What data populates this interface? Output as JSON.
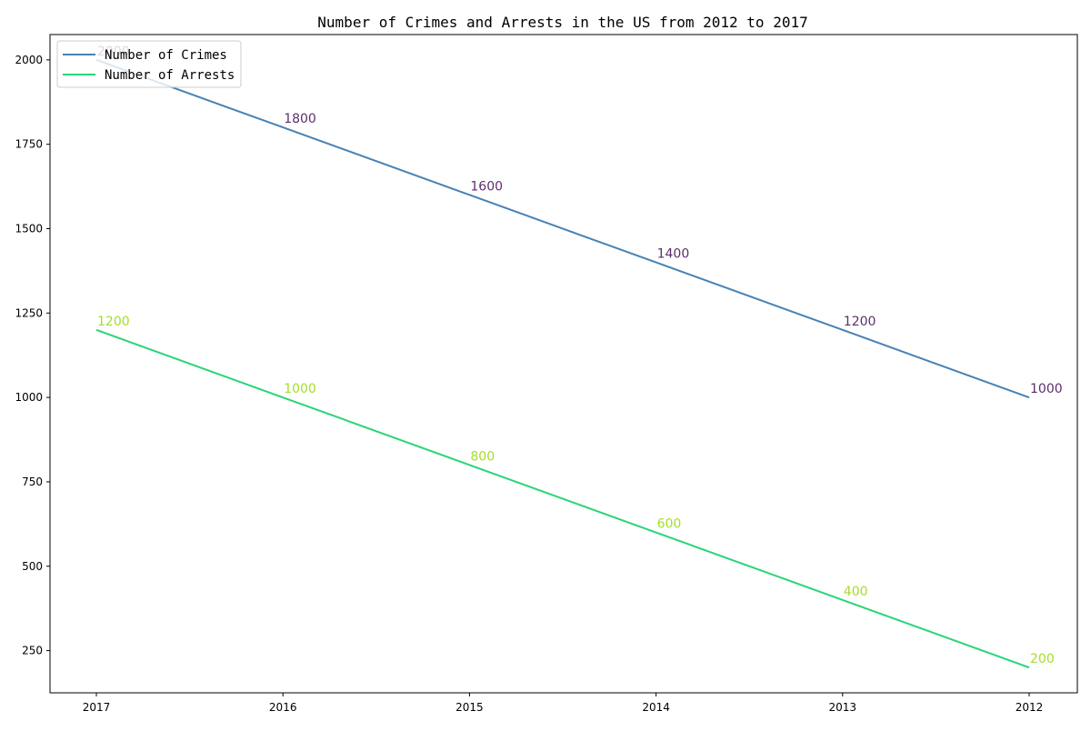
{
  "chart_data": {
    "type": "line",
    "title": "Number of Crimes and Arrests in the US from 2012 to 2017",
    "xlabel": "",
    "ylabel": "",
    "categories": [
      "2017",
      "2016",
      "2015",
      "2014",
      "2013",
      "2012"
    ],
    "x_reversed_order_displayed": true,
    "ylim": [
      125,
      2075
    ],
    "yticks": [
      250,
      500,
      750,
      1000,
      1250,
      1500,
      1750,
      2000
    ],
    "grid": false,
    "legend_placement": "top-left",
    "series": [
      {
        "name": "Number of Crimes",
        "values": [
          2000,
          1800,
          1600,
          1400,
          1200,
          1000
        ],
        "line_color": "#4682b4",
        "label_color": "#5c2f6b"
      },
      {
        "name": "Number of Arrests",
        "values": [
          1200,
          1000,
          800,
          600,
          400,
          200
        ],
        "line_color": "#2ad47a",
        "label_color": "#a5dd2a"
      }
    ]
  }
}
